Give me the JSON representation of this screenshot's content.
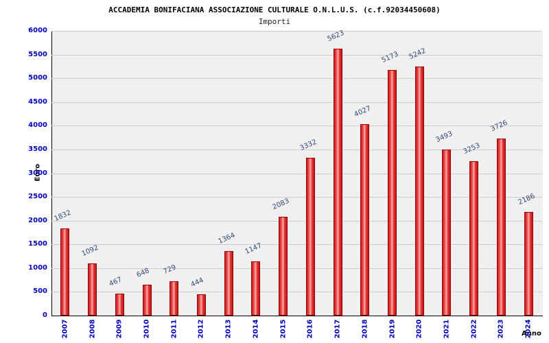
{
  "chart_data": {
    "type": "bar",
    "title": "ACCADEMIA BONIFACIANA ASSOCIAZIONE CULTURALE O.N.L.U.S. (c.f.92034450608)",
    "subtitle": "Importi",
    "xlabel": "Anno",
    "ylabel": "Euro",
    "categories": [
      "2007",
      "2008",
      "2009",
      "2010",
      "2011",
      "2012",
      "2013",
      "2014",
      "2015",
      "2016",
      "2017",
      "2018",
      "2019",
      "2020",
      "2021",
      "2022",
      "2023",
      "2024"
    ],
    "values": [
      1832,
      1092,
      467,
      648,
      729,
      444,
      1364,
      1147,
      2083,
      3332,
      5623,
      4027,
      5173,
      5242,
      3493,
      3253,
      3726,
      2186
    ],
    "ylim": [
      0,
      6000
    ],
    "ytick_step": 500,
    "grid": true,
    "legend": "none",
    "colors": {
      "bar_border": "#990000",
      "bar_fill": "#e63232",
      "tick_label": "#0000bb",
      "value_label": "#31497a",
      "plot_bg": "#f0f0f0",
      "grid_line": "#cccccc"
    }
  }
}
